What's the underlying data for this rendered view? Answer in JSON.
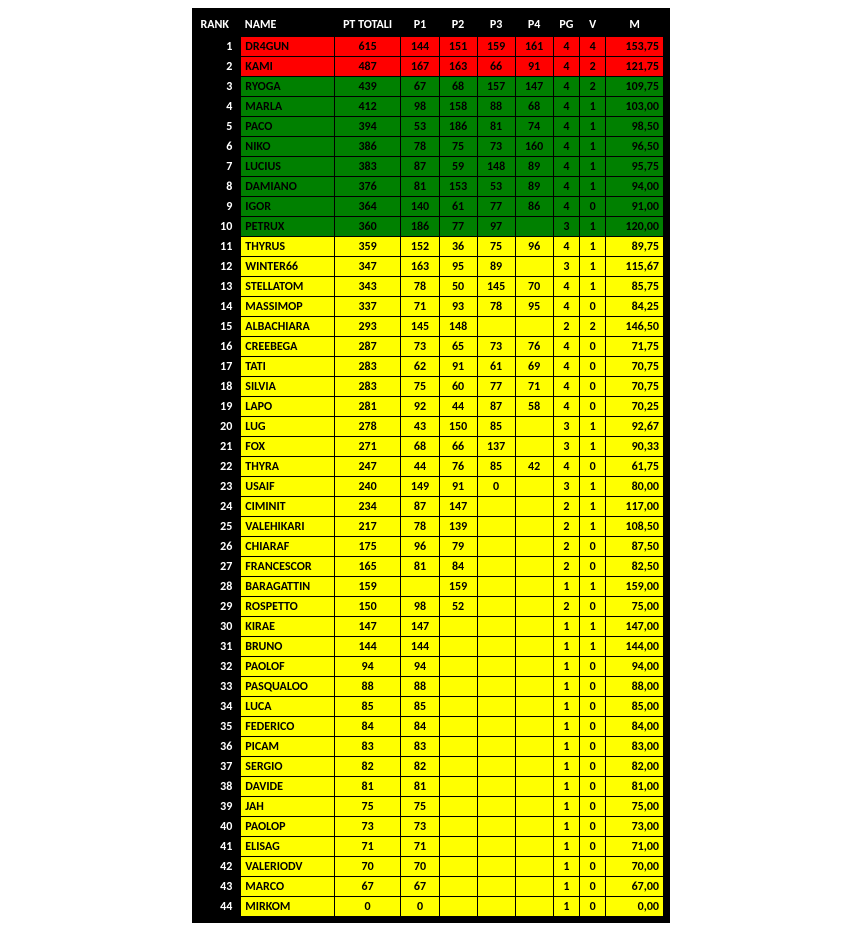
{
  "headers": {
    "rank": "RANK",
    "name": "NAME",
    "pt": "PT TOTALI",
    "p1": "P1",
    "p2": "P2",
    "p3": "P3",
    "p4": "P4",
    "pg": "PG",
    "v": "V",
    "m": "M"
  },
  "row_colors": {
    "red": "#ff0000",
    "green": "#008000",
    "yellow": "#ffff00",
    "header_bg": "#000000",
    "header_fg": "#ffffff",
    "border": "#000000"
  },
  "rows": [
    {
      "rank": "1",
      "name": "DR4GUN",
      "pt": "615",
      "p1": "144",
      "p2": "151",
      "p3": "159",
      "p4": "161",
      "pg": "4",
      "v": "4",
      "m": "153,75",
      "style": "red"
    },
    {
      "rank": "2",
      "name": "KAMI",
      "pt": "487",
      "p1": "167",
      "p2": "163",
      "p3": "66",
      "p4": "91",
      "pg": "4",
      "v": "2",
      "m": "121,75",
      "style": "red"
    },
    {
      "rank": "3",
      "name": "RYOGA",
      "pt": "439",
      "p1": "67",
      "p2": "68",
      "p3": "157",
      "p4": "147",
      "pg": "4",
      "v": "2",
      "m": "109,75",
      "style": "green"
    },
    {
      "rank": "4",
      "name": "MARLA",
      "pt": "412",
      "p1": "98",
      "p2": "158",
      "p3": "88",
      "p4": "68",
      "pg": "4",
      "v": "1",
      "m": "103,00",
      "style": "green"
    },
    {
      "rank": "5",
      "name": "PACO",
      "pt": "394",
      "p1": "53",
      "p2": "186",
      "p3": "81",
      "p4": "74",
      "pg": "4",
      "v": "1",
      "m": "98,50",
      "style": "green"
    },
    {
      "rank": "6",
      "name": "NIKO",
      "pt": "386",
      "p1": "78",
      "p2": "75",
      "p3": "73",
      "p4": "160",
      "pg": "4",
      "v": "1",
      "m": "96,50",
      "style": "green"
    },
    {
      "rank": "7",
      "name": "LUCIUS",
      "pt": "383",
      "p1": "87",
      "p2": "59",
      "p3": "148",
      "p4": "89",
      "pg": "4",
      "v": "1",
      "m": "95,75",
      "style": "green"
    },
    {
      "rank": "8",
      "name": "DAMIANO",
      "pt": "376",
      "p1": "81",
      "p2": "153",
      "p3": "53",
      "p4": "89",
      "pg": "4",
      "v": "1",
      "m": "94,00",
      "style": "green"
    },
    {
      "rank": "9",
      "name": "IGOR",
      "pt": "364",
      "p1": "140",
      "p2": "61",
      "p3": "77",
      "p4": "86",
      "pg": "4",
      "v": "0",
      "m": "91,00",
      "style": "green"
    },
    {
      "rank": "10",
      "name": "PETRUX",
      "pt": "360",
      "p1": "186",
      "p2": "77",
      "p3": "97",
      "p4": "",
      "pg": "3",
      "v": "1",
      "m": "120,00",
      "style": "green"
    },
    {
      "rank": "11",
      "name": "THYRUS",
      "pt": "359",
      "p1": "152",
      "p2": "36",
      "p3": "75",
      "p4": "96",
      "pg": "4",
      "v": "1",
      "m": "89,75",
      "style": "yellow"
    },
    {
      "rank": "12",
      "name": "WINTER66",
      "pt": "347",
      "p1": "163",
      "p2": "95",
      "p3": "89",
      "p4": "",
      "pg": "3",
      "v": "1",
      "m": "115,67",
      "style": "yellow"
    },
    {
      "rank": "13",
      "name": "STELLATOM",
      "pt": "343",
      "p1": "78",
      "p2": "50",
      "p3": "145",
      "p4": "70",
      "pg": "4",
      "v": "1",
      "m": "85,75",
      "style": "yellow"
    },
    {
      "rank": "14",
      "name": "MASSIMOP",
      "pt": "337",
      "p1": "71",
      "p2": "93",
      "p3": "78",
      "p4": "95",
      "pg": "4",
      "v": "0",
      "m": "84,25",
      "style": "yellow"
    },
    {
      "rank": "15",
      "name": "ALBACHIARA",
      "pt": "293",
      "p1": "145",
      "p2": "148",
      "p3": "",
      "p4": "",
      "pg": "2",
      "v": "2",
      "m": "146,50",
      "style": "yellow"
    },
    {
      "rank": "16",
      "name": "CREEBEGA",
      "pt": "287",
      "p1": "73",
      "p2": "65",
      "p3": "73",
      "p4": "76",
      "pg": "4",
      "v": "0",
      "m": "71,75",
      "style": "yellow"
    },
    {
      "rank": "17",
      "name": "TATI",
      "pt": "283",
      "p1": "62",
      "p2": "91",
      "p3": "61",
      "p4": "69",
      "pg": "4",
      "v": "0",
      "m": "70,75",
      "style": "yellow"
    },
    {
      "rank": "18",
      "name": "SILVIA",
      "pt": "283",
      "p1": "75",
      "p2": "60",
      "p3": "77",
      "p4": "71",
      "pg": "4",
      "v": "0",
      "m": "70,75",
      "style": "yellow"
    },
    {
      "rank": "19",
      "name": "LAPO",
      "pt": "281",
      "p1": "92",
      "p2": "44",
      "p3": "87",
      "p4": "58",
      "pg": "4",
      "v": "0",
      "m": "70,25",
      "style": "yellow"
    },
    {
      "rank": "20",
      "name": "LUG",
      "pt": "278",
      "p1": "43",
      "p2": "150",
      "p3": "85",
      "p4": "",
      "pg": "3",
      "v": "1",
      "m": "92,67",
      "style": "yellow"
    },
    {
      "rank": "21",
      "name": "FOX",
      "pt": "271",
      "p1": "68",
      "p2": "66",
      "p3": "137",
      "p4": "",
      "pg": "3",
      "v": "1",
      "m": "90,33",
      "style": "yellow"
    },
    {
      "rank": "22",
      "name": "THYRA",
      "pt": "247",
      "p1": "44",
      "p2": "76",
      "p3": "85",
      "p4": "42",
      "pg": "4",
      "v": "0",
      "m": "61,75",
      "style": "yellow"
    },
    {
      "rank": "23",
      "name": "USAIF",
      "pt": "240",
      "p1": "149",
      "p2": "91",
      "p3": "0",
      "p4": "",
      "pg": "3",
      "v": "1",
      "m": "80,00",
      "style": "yellow"
    },
    {
      "rank": "24",
      "name": "CIMINIT",
      "pt": "234",
      "p1": "87",
      "p2": "147",
      "p3": "",
      "p4": "",
      "pg": "2",
      "v": "1",
      "m": "117,00",
      "style": "yellow"
    },
    {
      "rank": "25",
      "name": "VALEHIKARI",
      "pt": "217",
      "p1": "78",
      "p2": "139",
      "p3": "",
      "p4": "",
      "pg": "2",
      "v": "1",
      "m": "108,50",
      "style": "yellow"
    },
    {
      "rank": "26",
      "name": "CHIARAF",
      "pt": "175",
      "p1": "96",
      "p2": "79",
      "p3": "",
      "p4": "",
      "pg": "2",
      "v": "0",
      "m": "87,50",
      "style": "yellow"
    },
    {
      "rank": "27",
      "name": "FRANCESCOR",
      "pt": "165",
      "p1": "81",
      "p2": "84",
      "p3": "",
      "p4": "",
      "pg": "2",
      "v": "0",
      "m": "82,50",
      "style": "yellow"
    },
    {
      "rank": "28",
      "name": "BARAGATTIN",
      "pt": "159",
      "p1": "",
      "p2": "159",
      "p3": "",
      "p4": "",
      "pg": "1",
      "v": "1",
      "m": "159,00",
      "style": "yellow"
    },
    {
      "rank": "29",
      "name": "ROSPETTO",
      "pt": "150",
      "p1": "98",
      "p2": "52",
      "p3": "",
      "p4": "",
      "pg": "2",
      "v": "0",
      "m": "75,00",
      "style": "yellow"
    },
    {
      "rank": "30",
      "name": "KIRAE",
      "pt": "147",
      "p1": "147",
      "p2": "",
      "p3": "",
      "p4": "",
      "pg": "1",
      "v": "1",
      "m": "147,00",
      "style": "yellow"
    },
    {
      "rank": "31",
      "name": "BRUNO",
      "pt": "144",
      "p1": "144",
      "p2": "",
      "p3": "",
      "p4": "",
      "pg": "1",
      "v": "1",
      "m": "144,00",
      "style": "yellow"
    },
    {
      "rank": "32",
      "name": "PAOLOF",
      "pt": "94",
      "p1": "94",
      "p2": "",
      "p3": "",
      "p4": "",
      "pg": "1",
      "v": "0",
      "m": "94,00",
      "style": "yellow"
    },
    {
      "rank": "33",
      "name": "PASQUALOO",
      "pt": "88",
      "p1": "88",
      "p2": "",
      "p3": "",
      "p4": "",
      "pg": "1",
      "v": "0",
      "m": "88,00",
      "style": "yellow"
    },
    {
      "rank": "34",
      "name": "LUCA",
      "pt": "85",
      "p1": "85",
      "p2": "",
      "p3": "",
      "p4": "",
      "pg": "1",
      "v": "0",
      "m": "85,00",
      "style": "yellow"
    },
    {
      "rank": "35",
      "name": "FEDERICO",
      "pt": "84",
      "p1": "84",
      "p2": "",
      "p3": "",
      "p4": "",
      "pg": "1",
      "v": "0",
      "m": "84,00",
      "style": "yellow"
    },
    {
      "rank": "36",
      "name": "PICAM",
      "pt": "83",
      "p1": "83",
      "p2": "",
      "p3": "",
      "p4": "",
      "pg": "1",
      "v": "0",
      "m": "83,00",
      "style": "yellow"
    },
    {
      "rank": "37",
      "name": "SERGIO",
      "pt": "82",
      "p1": "82",
      "p2": "",
      "p3": "",
      "p4": "",
      "pg": "1",
      "v": "0",
      "m": "82,00",
      "style": "yellow"
    },
    {
      "rank": "38",
      "name": "DAVIDE",
      "pt": "81",
      "p1": "81",
      "p2": "",
      "p3": "",
      "p4": "",
      "pg": "1",
      "v": "0",
      "m": "81,00",
      "style": "yellow"
    },
    {
      "rank": "39",
      "name": "JAH",
      "pt": "75",
      "p1": "75",
      "p2": "",
      "p3": "",
      "p4": "",
      "pg": "1",
      "v": "0",
      "m": "75,00",
      "style": "yellow"
    },
    {
      "rank": "40",
      "name": "PAOLOP",
      "pt": "73",
      "p1": "73",
      "p2": "",
      "p3": "",
      "p4": "",
      "pg": "1",
      "v": "0",
      "m": "73,00",
      "style": "yellow"
    },
    {
      "rank": "41",
      "name": "ELISAG",
      "pt": "71",
      "p1": "71",
      "p2": "",
      "p3": "",
      "p4": "",
      "pg": "1",
      "v": "0",
      "m": "71,00",
      "style": "yellow"
    },
    {
      "rank": "42",
      "name": "VALERIODV",
      "pt": "70",
      "p1": "70",
      "p2": "",
      "p3": "",
      "p4": "",
      "pg": "1",
      "v": "0",
      "m": "70,00",
      "style": "yellow"
    },
    {
      "rank": "43",
      "name": "MARCO",
      "pt": "67",
      "p1": "67",
      "p2": "",
      "p3": "",
      "p4": "",
      "pg": "1",
      "v": "0",
      "m": "67,00",
      "style": "yellow"
    },
    {
      "rank": "44",
      "name": "MIRKOM",
      "pt": "0",
      "p1": "0",
      "p2": "",
      "p3": "",
      "p4": "",
      "pg": "1",
      "v": "0",
      "m": "0,00",
      "style": "yellow"
    }
  ]
}
